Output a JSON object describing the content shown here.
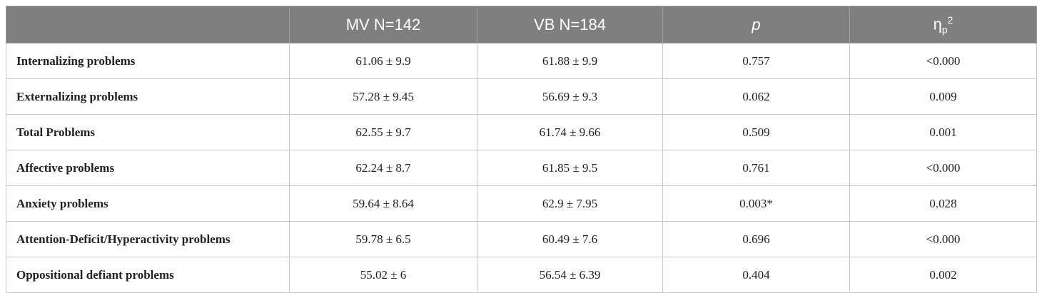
{
  "table": {
    "header": [
      "MV N=142",
      "VB N=184",
      "p",
      {
        "symbol": "η",
        "sub": "p",
        "sup": "2"
      }
    ],
    "rows": [
      [
        "Internalizing problems",
        "61.06 ± 9.9",
        "61.88 ± 9.9",
        "0.757",
        "<0.000"
      ],
      [
        "Externalizing problems",
        "57.28 ± 9.45",
        "56.69 ± 9.3",
        "0.062",
        "0.009"
      ],
      [
        "Total Problems",
        "62.55 ± 9.7",
        "61.74 ± 9.66",
        "0.509",
        "0.001"
      ],
      [
        "Affective problems",
        "62.24 ± 8.7",
        "61.85 ± 9.5",
        "0.761",
        "<0.000"
      ],
      [
        "Anxiety problems",
        "59.64 ± 8.64",
        "62.9 ± 7.95",
        "0.003*",
        "0.028"
      ],
      [
        "Attention-Deficit/Hyperactivity problems",
        "59.78 ± 6.5",
        "60.49 ± 7.6",
        "0.696",
        "<0.000"
      ],
      [
        "Oppositional defiant problems",
        "55.02 ± 6",
        "56.54 ± 6.39",
        "0.404",
        "0.002"
      ]
    ]
  }
}
